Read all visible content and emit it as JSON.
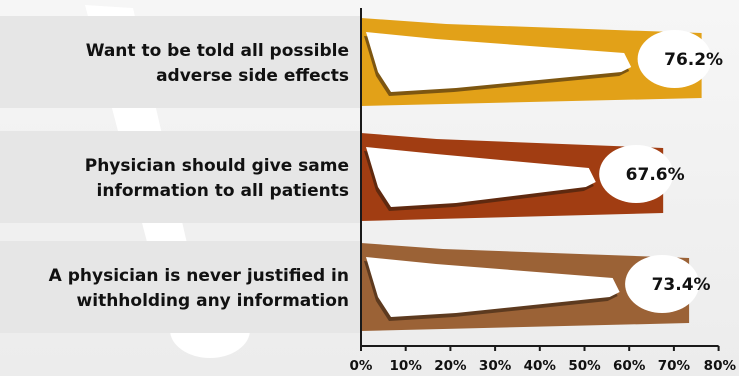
{
  "chart_data": {
    "type": "bar",
    "orientation": "horizontal",
    "categories": [
      [
        "Want to be told all possible",
        "adverse side effects"
      ],
      [
        "Physician should give same",
        "information to all patients"
      ],
      [
        "A physician is never justified in",
        "withholding any information"
      ]
    ],
    "values": [
      76.2,
      67.6,
      73.4
    ],
    "value_labels": [
      "76.2%",
      "67.6%",
      "73.4%"
    ],
    "bar_colors": [
      "#e2a118",
      "#a13d12",
      "#9b6236"
    ],
    "xlim": [
      0,
      80
    ],
    "x_ticks": [
      0,
      10,
      20,
      30,
      40,
      50,
      60,
      70,
      80
    ],
    "x_tick_labels": [
      "0%",
      "10%",
      "20%",
      "30%",
      "40%",
      "50%",
      "60%",
      "70%",
      "80%"
    ],
    "grid": false,
    "title": "",
    "xlabel": "",
    "ylabel": ""
  },
  "colors": {
    "background": "#f1f1f1",
    "decoration": "#ffffff",
    "axis": "#1a1a1a",
    "text": "#111111"
  }
}
